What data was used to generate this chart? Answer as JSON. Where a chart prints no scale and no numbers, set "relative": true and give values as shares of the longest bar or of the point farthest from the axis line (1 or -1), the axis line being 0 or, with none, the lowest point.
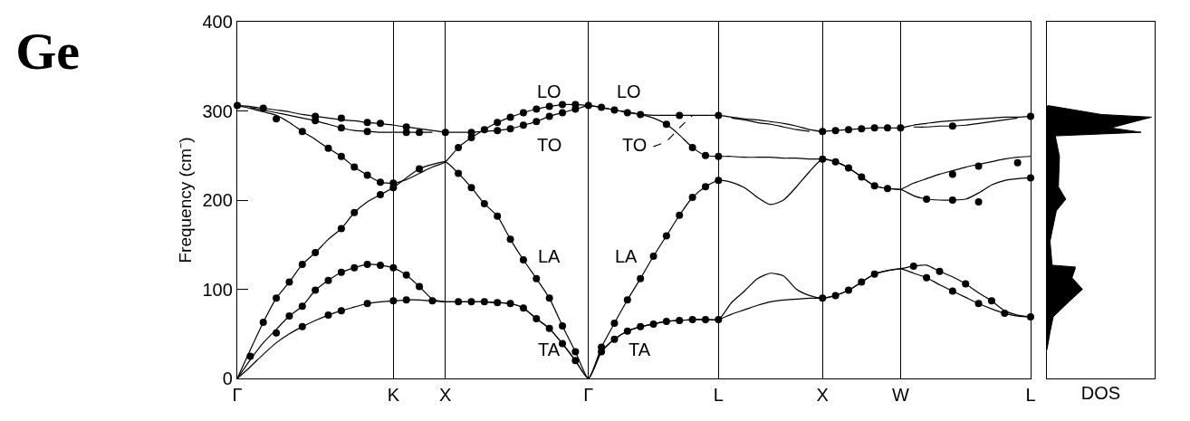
{
  "chart_data": [
    {
      "type": "line",
      "title": "Ge",
      "ylabel": "Frequency (cm⁻)",
      "ylim": [
        0,
        400
      ],
      "categories": [
        "Γ",
        null,
        null,
        null,
        null,
        null,
        null,
        null,
        null,
        null,
        null,
        null,
        "K",
        null,
        null,
        null,
        "X",
        null,
        null,
        null,
        null,
        null,
        null,
        null,
        null,
        null,
        null,
        "Γ",
        null,
        null,
        null,
        null,
        null,
        null,
        null,
        null,
        null,
        "L",
        null,
        null,
        null,
        null,
        null,
        null,
        null,
        "X",
        null,
        null,
        null,
        null,
        null,
        "W",
        null,
        null,
        null,
        null,
        null,
        null,
        null,
        null,
        null,
        "L"
      ],
      "yticks": [
        0,
        100,
        200,
        300,
        400
      ],
      "grid": "x",
      "marker": "none",
      "line_style": "solid",
      "annotations": [
        "LO",
        "LO",
        "TO",
        "TO",
        "LA",
        "LA",
        "TA",
        "TA"
      ],
      "series": [
        {
          "color": "#000000",
          "values": [
            0,
            13,
            27,
            40,
            50,
            58,
            65,
            71,
            76,
            80,
            84,
            86,
            87,
            88,
            88,
            87,
            86,
            86,
            86,
            86,
            85,
            84,
            79,
            67,
            56,
            39,
            20,
            0,
            30,
            44,
            53,
            58,
            61,
            64,
            65,
            66,
            66,
            66,
            72,
            77,
            82,
            86,
            88,
            89,
            90,
            90,
            93,
            99,
            108,
            117,
            121,
            123,
            118,
            113,
            105,
            98,
            91,
            84,
            78,
            73,
            70,
            69
          ]
        },
        {
          "color": "#000000",
          "values": [
            0,
            21,
            40,
            55,
            70,
            81,
            99,
            110,
            119,
            124,
            128,
            127,
            124,
            116,
            103,
            89,
            86,
            86,
            86,
            86,
            85,
            84,
            79,
            67,
            56,
            39,
            20,
            0,
            30,
            44,
            53,
            58,
            61,
            64,
            65,
            66,
            66,
            66,
            85,
            98,
            112,
            118,
            115,
            100,
            93,
            90,
            93,
            99,
            108,
            117,
            121,
            123,
            126,
            127,
            120,
            114,
            106,
            96,
            87,
            76,
            71,
            69
          ]
        },
        {
          "color": "#000000",
          "values": [
            0,
            32,
            63,
            90,
            108,
            128,
            141,
            156,
            168,
            186,
            198,
            206,
            214,
            225,
            235,
            240,
            243,
            230,
            214,
            196,
            182,
            156,
            133,
            112,
            90,
            59,
            30,
            0,
            35,
            62,
            88,
            112,
            137,
            160,
            183,
            203,
            215,
            222,
            220,
            214,
            203,
            195,
            200,
            215,
            232,
            246,
            243,
            236,
            226,
            216,
            213,
            212,
            205,
            201,
            200,
            200,
            201,
            208,
            217,
            222,
            224,
            225
          ]
        },
        {
          "color": "#000000",
          "values": [
            306,
            303,
            299,
            295,
            287,
            277,
            268,
            258,
            249,
            237,
            228,
            220,
            219,
            223,
            230,
            237,
            243,
            259,
            270,
            279,
            287,
            293,
            298,
            302,
            305,
            307,
            307,
            306,
            304,
            301,
            299,
            296,
            292,
            285,
            273,
            259,
            250,
            249,
            249,
            248,
            248,
            248,
            247,
            247,
            246,
            246,
            243,
            236,
            226,
            216,
            213,
            212,
            219,
            224,
            229,
            233,
            237,
            240,
            243,
            246,
            248,
            249
          ]
        },
        {
          "color": "#000000",
          "values": [
            306,
            305,
            303,
            301,
            299,
            296,
            294,
            292,
            290,
            289,
            287,
            286,
            284,
            282,
            280,
            278,
            276,
            276,
            276,
            277,
            278,
            280,
            284,
            288,
            294,
            298,
            302,
            306,
            304,
            301,
            298,
            296,
            295,
            295,
            295,
            295,
            295,
            295,
            293,
            291,
            290,
            288,
            286,
            283,
            279,
            277,
            278,
            279,
            280,
            281,
            281,
            281,
            284,
            286,
            288,
            289,
            290,
            291,
            292,
            293,
            293,
            294
          ]
        },
        {
          "color": "#000000",
          "values": [
            null,
            304,
            301,
            298,
            295,
            292,
            289,
            285,
            281,
            278,
            277,
            276,
            276,
            276,
            276,
            276,
            null,
            null,
            null,
            null,
            null,
            null,
            null,
            null,
            null,
            null,
            null,
            null,
            null,
            null,
            null,
            null,
            null,
            null,
            null,
            null,
            null,
            null,
            292,
            290,
            287,
            285,
            282,
            279,
            277,
            null,
            null,
            null,
            null,
            null,
            null,
            null,
            282,
            282,
            283,
            283,
            284,
            286,
            288,
            290,
            292,
            null
          ]
        },
        {
          "color": "#000000",
          "line_style": "dashed",
          "values": [
            null,
            null,
            null,
            null,
            null,
            null,
            null,
            null,
            null,
            null,
            null,
            null,
            null,
            null,
            null,
            null,
            null,
            null,
            null,
            null,
            null,
            null,
            null,
            null,
            null,
            null,
            null,
            null,
            null,
            null,
            null,
            null,
            260,
            266,
            281,
            295,
            null,
            null,
            null,
            null,
            null,
            null,
            null,
            null,
            null,
            null,
            null,
            null,
            null,
            null,
            null,
            null,
            null,
            null,
            null,
            null,
            null,
            null,
            null,
            null,
            null,
            null
          ]
        },
        {
          "type": "scatter",
          "marker": "circle",
          "color": "#000000",
          "values": [
            null,
            null,
            null,
            null,
            null,
            58,
            null,
            71,
            76,
            null,
            84,
            null,
            87,
            88,
            null,
            87,
            null,
            86,
            86,
            86,
            85,
            84,
            79,
            67,
            56,
            39,
            20,
            null,
            30,
            44,
            53,
            58,
            61,
            64,
            65,
            66,
            66,
            66,
            null,
            null,
            null,
            null,
            null,
            null,
            null,
            90,
            93,
            99,
            108,
            117,
            null,
            null,
            null,
            113,
            null,
            98,
            null,
            84,
            null,
            73,
            null,
            69
          ]
        },
        {
          "type": "scatter",
          "marker": "circle",
          "color": "#000000",
          "values": [
            null,
            null,
            null,
            null,
            70,
            81,
            99,
            110,
            119,
            124,
            128,
            127,
            124,
            116,
            103,
            null,
            null,
            null,
            null,
            null,
            null,
            null,
            null,
            null,
            null,
            null,
            null,
            null,
            null,
            null,
            null,
            null,
            null,
            null,
            null,
            null,
            null,
            null,
            null,
            null,
            null,
            null,
            null,
            null,
            null,
            null,
            null,
            null,
            null,
            null,
            null,
            null,
            126,
            null,
            120,
            null,
            106,
            null,
            87,
            null,
            null,
            null
          ]
        },
        {
          "type": "scatter",
          "marker": "circle",
          "color": "#000000",
          "values": [
            null,
            null,
            63,
            90,
            108,
            128,
            141,
            null,
            168,
            186,
            null,
            206,
            214,
            null,
            235,
            null,
            null,
            230,
            214,
            196,
            182,
            156,
            133,
            112,
            90,
            59,
            30,
            null,
            35,
            62,
            88,
            112,
            137,
            160,
            183,
            203,
            215,
            222,
            null,
            null,
            null,
            null,
            null,
            null,
            null,
            null,
            null,
            null,
            null,
            null,
            null,
            null,
            null,
            201,
            null,
            200,
            null,
            198,
            null,
            null,
            null,
            225
          ]
        },
        {
          "type": "scatter",
          "marker": "circle",
          "color": "#000000",
          "values": [
            null,
            null,
            null,
            291,
            null,
            277,
            null,
            258,
            249,
            237,
            228,
            220,
            219,
            null,
            null,
            null,
            null,
            259,
            270,
            279,
            287,
            293,
            298,
            302,
            305,
            307,
            307,
            null,
            null,
            301,
            null,
            296,
            null,
            285,
            null,
            259,
            250,
            249,
            null,
            null,
            null,
            null,
            null,
            null,
            null,
            246,
            243,
            236,
            226,
            216,
            213,
            null,
            null,
            null,
            null,
            229,
            null,
            238,
            null,
            null,
            242,
            null
          ]
        },
        {
          "type": "scatter",
          "marker": "circle",
          "color": "#000000",
          "values": [
            306,
            null,
            303,
            null,
            null,
            null,
            294,
            null,
            292,
            null,
            287,
            286,
            null,
            282,
            null,
            null,
            276,
            null,
            276,
            null,
            278,
            null,
            284,
            null,
            294,
            null,
            302,
            306,
            304,
            null,
            298,
            null,
            null,
            null,
            295,
            null,
            null,
            295,
            null,
            null,
            null,
            null,
            null,
            null,
            null,
            277,
            278,
            279,
            280,
            281,
            281,
            281,
            null,
            null,
            null,
            283,
            null,
            null,
            null,
            null,
            null,
            294
          ]
        },
        {
          "type": "scatter",
          "marker": "circle",
          "color": "#000000",
          "values": [
            null,
            null,
            null,
            null,
            null,
            null,
            289,
            null,
            281,
            null,
            277,
            null,
            null,
            276,
            276,
            null,
            null,
            null,
            null,
            null,
            null,
            280,
            null,
            288,
            null,
            298,
            null,
            null,
            null,
            null,
            null,
            null,
            null,
            null,
            null,
            null,
            null,
            null,
            null,
            null,
            null,
            null,
            null,
            null,
            null,
            null,
            null,
            null,
            null,
            null,
            null,
            null,
            null,
            null,
            null,
            null,
            null,
            null,
            null,
            null,
            null,
            null
          ]
        },
        {
          "type": "scatter",
          "marker": "circle",
          "color": "#000000",
          "values": [
            null,
            25,
            null,
            51,
            null,
            null,
            null,
            null,
            null,
            null,
            null,
            null,
            null,
            null,
            null,
            null,
            null,
            null,
            null,
            null,
            null,
            null,
            null,
            null,
            null,
            null,
            null,
            null,
            null,
            null,
            null,
            null,
            null,
            null,
            null,
            null,
            null,
            null,
            null,
            null,
            null,
            null,
            null,
            null,
            null,
            null,
            null,
            null,
            null,
            null,
            null,
            null,
            null,
            null,
            null,
            null,
            null,
            null,
            null,
            null,
            null,
            null
          ]
        }
      ]
    },
    {
      "type": "area",
      "orientation": "horizontal",
      "relative": true,
      "xlabel": "DOS",
      "ylim": [
        0,
        400
      ],
      "series": [
        {
          "color": "#000000",
          "x": [
            32,
            52,
            69,
            86,
            100,
            113,
            123,
            125,
            127,
            154,
            188,
            201,
            215,
            249,
            272,
            276,
            281,
            293,
            296,
            306
          ],
          "values": [
            0,
            0.03,
            0.06,
            0.21,
            0.34,
            0.24,
            0.27,
            0.27,
            0.05,
            0.03,
            0.09,
            0.18,
            0.11,
            0.12,
            0.08,
            0.9,
            0.61,
            1.0,
            0.52,
            0.01
          ]
        }
      ]
    }
  ]
}
